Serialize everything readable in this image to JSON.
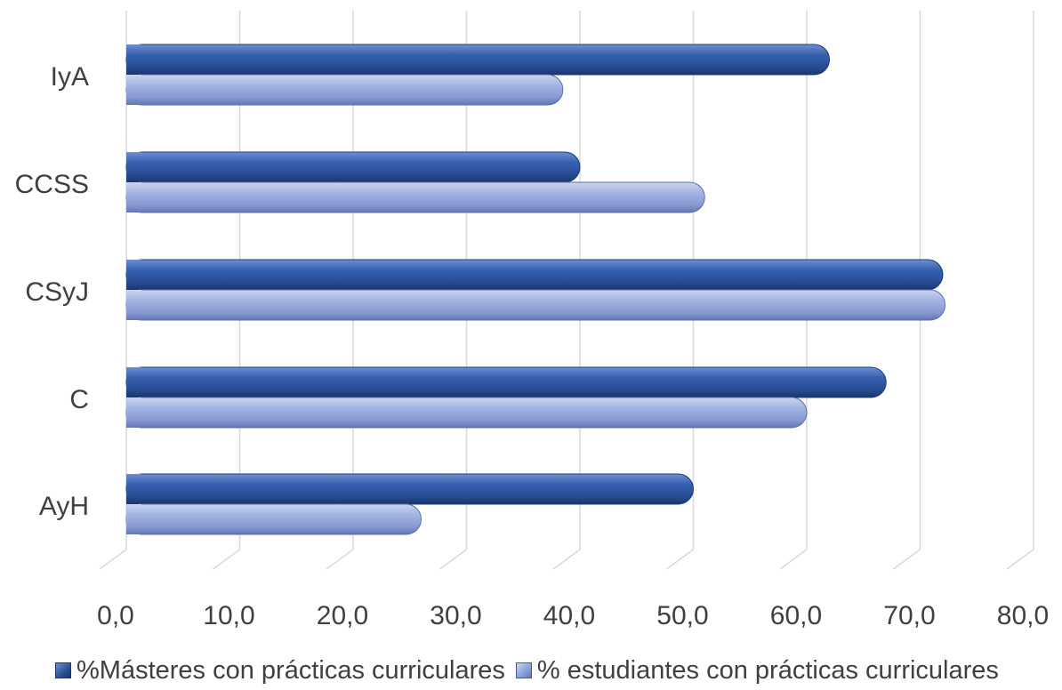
{
  "chart_data": {
    "type": "bar",
    "orientation": "horizontal",
    "categories": [
      "IyA",
      "CCSS",
      "CSyJ",
      "C",
      "AyH"
    ],
    "series": [
      {
        "name": "%Másteres con prácticas curriculares",
        "color": "#2F5597",
        "values": [
          62.0,
          40.0,
          72.0,
          67.0,
          50.0
        ]
      },
      {
        "name": "% estudiantes con prácticas curriculares",
        "color": "#8FA3DA",
        "values": [
          38.5,
          51.0,
          72.2,
          60.0,
          26.0
        ]
      }
    ],
    "x_ticks": [
      "0,0",
      "10,0",
      "20,0",
      "30,0",
      "40,0",
      "50,0",
      "60,0",
      "70,0",
      "80,0"
    ],
    "xlim": [
      0,
      80
    ],
    "grid": true,
    "legend_position": "bottom"
  }
}
